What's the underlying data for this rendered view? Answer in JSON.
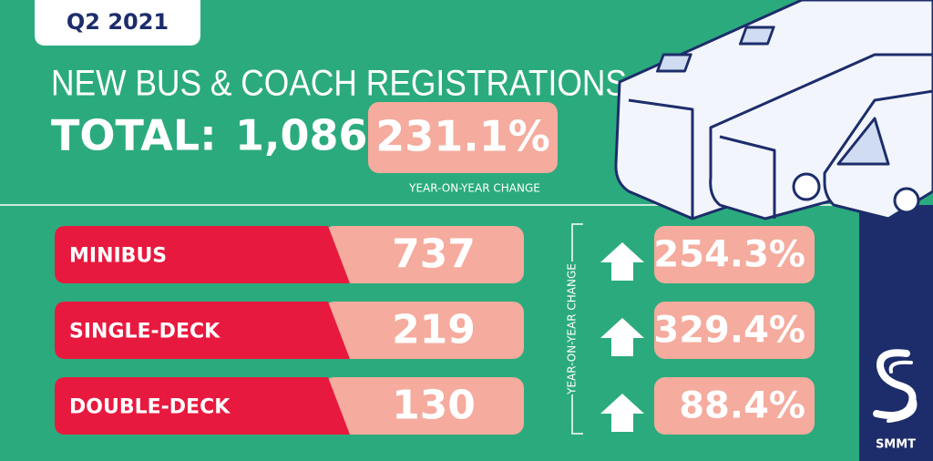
{
  "period": "Q2 2021",
  "title": "NEW BUS & COACH REGISTRATIONS",
  "total": {
    "label": "TOTAL:",
    "value": "1,086",
    "change": "231.1%",
    "change_label": "YEAR-ON-YEAR CHANGE"
  },
  "rows": [
    {
      "label": "MINIBUS",
      "value": "737",
      "change": "254.3%"
    },
    {
      "label": "SINGLE-DECK",
      "value": "219",
      "change": "329.4%"
    },
    {
      "label": "DOUBLE-DECK",
      "value": "130",
      "change": "88.4%"
    }
  ],
  "side_label": "YEAR-ON-YEAR CHANGE",
  "logo": "SMMT"
}
